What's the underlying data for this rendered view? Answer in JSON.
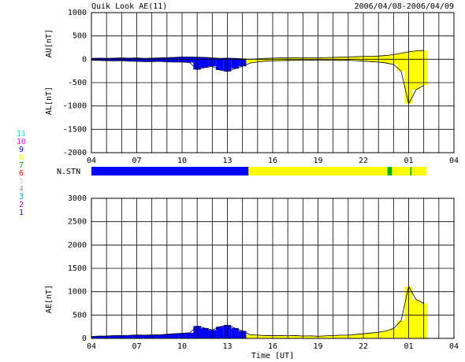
{
  "chart_data": [
    {
      "type": "area",
      "title": "Quik Look AE(11)",
      "subtitle": "2006/04/08-2006/04/09",
      "ylabels": [
        "AU[nT]",
        "AL[nT]"
      ],
      "x": [
        4,
        4.5,
        5,
        5.5,
        6,
        6.5,
        7,
        7.5,
        8,
        8.5,
        9,
        9.5,
        10,
        10.5,
        11,
        11.5,
        12,
        12.5,
        13,
        13.5,
        14,
        14.5,
        15,
        15.5,
        16,
        16.5,
        17,
        17.5,
        18,
        18.5,
        19,
        19.5,
        20,
        20.5,
        21,
        21.5,
        22,
        22.5,
        23,
        23.5,
        24,
        24.5,
        25,
        25.5,
        26
      ],
      "series": [
        {
          "name": "AU",
          "color": "#000000",
          "values": [
            20,
            25,
            20,
            25,
            30,
            25,
            30,
            20,
            25,
            30,
            35,
            40,
            50,
            50,
            45,
            40,
            30,
            20,
            25,
            20,
            10,
            0,
            10,
            20,
            25,
            30,
            30,
            35,
            30,
            35,
            30,
            35,
            40,
            45,
            50,
            55,
            60,
            65,
            70,
            80,
            100,
            130,
            160,
            180,
            190
          ]
        },
        {
          "name": "AL",
          "color": "#000000",
          "values": [
            -20,
            -25,
            -30,
            -35,
            -30,
            -40,
            -45,
            -50,
            -50,
            -45,
            -55,
            -60,
            -60,
            -70,
            -220,
            -180,
            -150,
            -230,
            -260,
            -200,
            -150,
            -80,
            -60,
            -40,
            -35,
            -30,
            -25,
            -25,
            -20,
            -20,
            -15,
            -20,
            -20,
            -25,
            -20,
            -30,
            -40,
            -50,
            -60,
            -80,
            -110,
            -250,
            -950,
            -650,
            -560
          ]
        }
      ],
      "xlim": [
        4,
        28
      ],
      "xticks": [
        {
          "value": 4,
          "label": "04"
        },
        {
          "value": 7,
          "label": "07"
        },
        {
          "value": 10,
          "label": "10"
        },
        {
          "value": 13,
          "label": "13"
        },
        16,
        19,
        22,
        {
          "value": 25,
          "label": "01"
        },
        {
          "value": 28,
          "label": "04"
        }
      ],
      "xgrid": [
        4,
        5,
        6,
        7,
        8,
        9,
        10,
        11,
        12,
        13,
        14,
        15,
        16,
        17,
        18,
        19,
        20,
        21,
        22,
        23,
        24,
        25,
        26,
        27,
        28
      ],
      "ylim": [
        -2000,
        1000
      ],
      "yticks": [
        1000,
        500,
        0,
        -500,
        -1000,
        -1500,
        -2000
      ],
      "grid": true
    },
    {
      "type": "area",
      "ylabels": [
        "AE[nT]"
      ],
      "xlabel": "Time [UT]",
      "x": [
        4,
        4.5,
        5,
        5.5,
        6,
        6.5,
        7,
        7.5,
        8,
        8.5,
        9,
        9.5,
        10,
        10.5,
        11,
        11.5,
        12,
        12.5,
        13,
        13.5,
        14,
        14.5,
        15,
        15.5,
        16,
        16.5,
        17,
        17.5,
        18,
        18.5,
        19,
        19.5,
        20,
        20.5,
        21,
        21.5,
        22,
        22.5,
        23,
        23.5,
        24,
        24.5,
        25,
        25.5,
        26
      ],
      "series": [
        {
          "name": "AE",
          "color": "#000000",
          "values": [
            40,
            50,
            50,
            60,
            60,
            65,
            75,
            70,
            75,
            75,
            90,
            100,
            110,
            120,
            265,
            220,
            180,
            250,
            285,
            220,
            160,
            80,
            70,
            60,
            60,
            60,
            55,
            60,
            50,
            55,
            45,
            55,
            60,
            70,
            70,
            85,
            100,
            115,
            130,
            160,
            210,
            380,
            1110,
            830,
            750
          ]
        }
      ],
      "xlim": [
        4,
        28
      ],
      "xticks": [
        {
          "value": 4,
          "label": "04"
        },
        {
          "value": 7,
          "label": "07"
        },
        {
          "value": 10,
          "label": "10"
        },
        {
          "value": 13,
          "label": "13"
        },
        16,
        19,
        22,
        {
          "value": 25,
          "label": "01"
        },
        {
          "value": 28,
          "label": "04"
        }
      ],
      "xgrid": [
        4,
        5,
        6,
        7,
        8,
        9,
        10,
        11,
        12,
        13,
        14,
        15,
        16,
        17,
        18,
        19,
        20,
        21,
        22,
        23,
        24,
        25,
        26,
        27,
        28
      ],
      "ylim": [
        0,
        3000
      ],
      "yticks": [
        3000,
        2500,
        2000,
        1500,
        1000,
        500,
        0
      ],
      "grid": true
    }
  ],
  "stations": {
    "label": "N.STN",
    "segments": [
      {
        "start": 4,
        "end": 14.4,
        "count": 9
      },
      {
        "start": 14.4,
        "end": 23.6,
        "count": 8
      },
      {
        "start": 23.6,
        "end": 23.9,
        "count": 7
      },
      {
        "start": 23.9,
        "end": 25.1,
        "count": 8
      },
      {
        "start": 25.1,
        "end": 25.2,
        "count": 7
      },
      {
        "start": 25.2,
        "end": 26.2,
        "count": 8
      }
    ],
    "legend": [
      {
        "count": 11,
        "color": "#00e0e0"
      },
      {
        "count": 10,
        "color": "#ff00ff"
      },
      {
        "count": 9,
        "color": "#0000ff"
      },
      {
        "count": 8,
        "color": "#ffff00"
      },
      {
        "count": 7,
        "color": "#00b000"
      },
      {
        "count": 6,
        "color": "#ff0000"
      },
      {
        "count": 5,
        "color": "#d0d0d0"
      },
      {
        "count": 4,
        "color": "#a0a0a0"
      },
      {
        "count": 3,
        "color": "#00b0b0"
      },
      {
        "count": 2,
        "color": "#c000c0"
      },
      {
        "count": 1,
        "color": "#2020c0"
      }
    ]
  }
}
